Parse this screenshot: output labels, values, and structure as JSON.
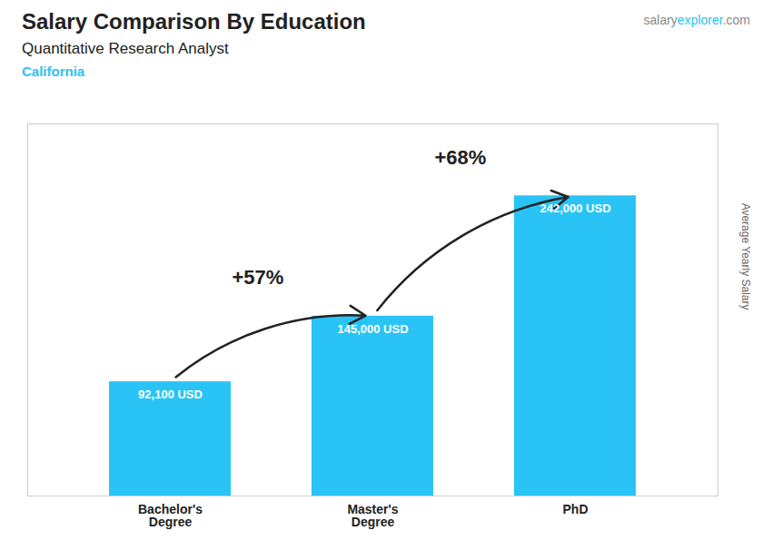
{
  "chart_data": {
    "type": "bar",
    "title": "Salary Comparison By Education",
    "subtitle": "Quantitative Research Analyst",
    "location": "California",
    "watermark": [
      "salary",
      "explorer",
      ".com"
    ],
    "ylabel": "Average Yearly Salary",
    "categories": [
      "Bachelor's\nDegree",
      "Master's\nDegree",
      "PhD"
    ],
    "values": [
      92100,
      145000,
      242000
    ],
    "value_labels": [
      "92,100 USD",
      "145,000 USD",
      "242,000 USD"
    ],
    "data_labels": true,
    "annotations": [
      "+57%",
      "+68%"
    ],
    "color": "#29C4F5",
    "ylim": [
      0,
      300000
    ],
    "yticks": [],
    "tick_labels": "x",
    "grid": false
  }
}
